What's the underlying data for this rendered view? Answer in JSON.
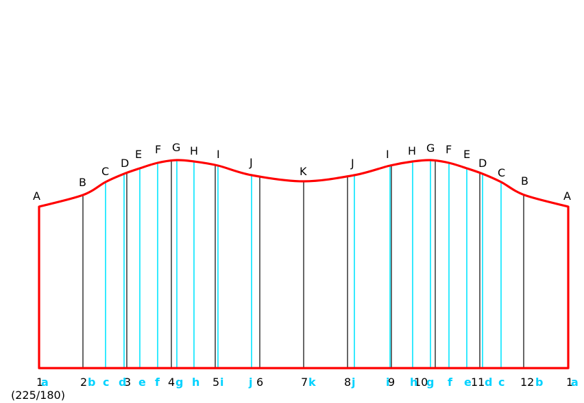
{
  "colors": {
    "outline": "#ff0000",
    "primary_line": "#000000",
    "secondary_line": "#00e5ff",
    "primary_text": "#000000",
    "secondary_text": "#00d2ff"
  },
  "top_labels": [
    "A",
    "B",
    "C",
    "D",
    "E",
    "F",
    "G",
    "H",
    "I",
    "J",
    "K",
    "J",
    "I",
    "H",
    "G",
    "F",
    "E",
    "D",
    "C",
    "B",
    "A"
  ],
  "bottom_numbers": [
    "1",
    "2",
    "3",
    "4",
    "5",
    "6",
    "7",
    "8",
    "9",
    "10",
    "11",
    "12",
    "1"
  ],
  "bottom_letters": [
    "a",
    "b",
    "c",
    "d",
    "e",
    "f",
    "g",
    "h",
    "i",
    "j",
    "k",
    "j",
    "i",
    "h",
    "g",
    "f",
    "e",
    "d",
    "c",
    "b",
    "a"
  ],
  "ratio_label": "(225/180)"
}
